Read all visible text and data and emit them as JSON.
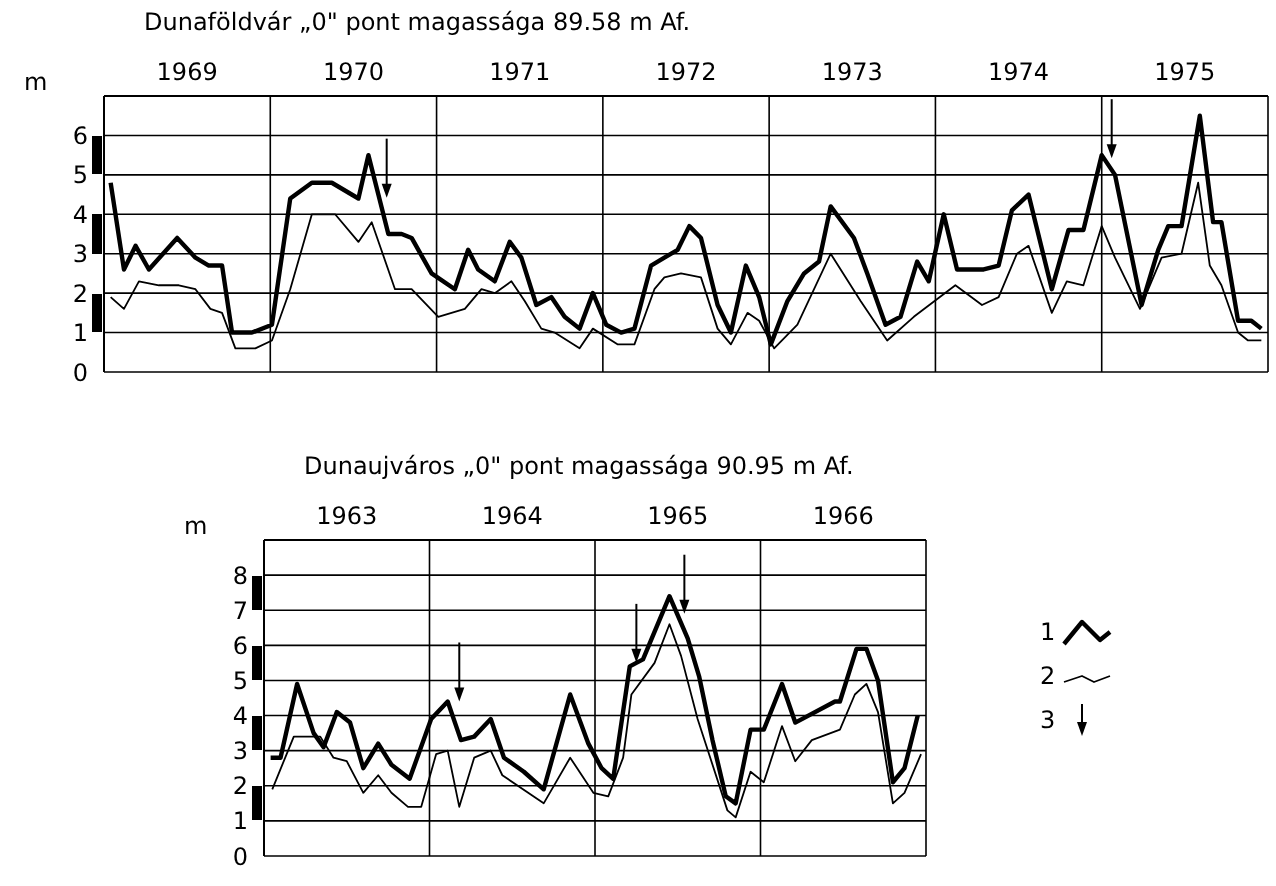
{
  "chart_data": [
    {
      "type": "line",
      "title": "Dunaföldvár „0\" pont magassága 89.58 m Af.",
      "ylabel": "m",
      "xlim": [
        1969,
        1976
      ],
      "ylim": [
        0,
        7
      ],
      "xticks": [
        {
          "value": 1969,
          "label": null
        },
        {
          "value": 1969.5,
          "label": "1969"
        },
        {
          "value": 1970,
          "label": null
        },
        {
          "value": 1970.5,
          "label": "1970"
        },
        {
          "value": 1971,
          "label": null
        },
        {
          "value": 1971.5,
          "label": "1971"
        },
        {
          "value": 1972,
          "label": null
        },
        {
          "value": 1972.5,
          "label": "1972"
        },
        {
          "value": 1973,
          "label": null
        },
        {
          "value": 1973.5,
          "label": "1973"
        },
        {
          "value": 1974,
          "label": null
        },
        {
          "value": 1974.5,
          "label": "1974"
        },
        {
          "value": 1975,
          "label": null
        },
        {
          "value": 1975.5,
          "label": "1975"
        },
        {
          "value": 1976,
          "label": null
        }
      ],
      "yticks": [
        0,
        1,
        2,
        3,
        4,
        5,
        6
      ],
      "grid": true,
      "legend": false,
      "series": [
        {
          "color": "#000000",
          "x": [
            1969.04,
            1969.12,
            1969.19,
            1969.27,
            1969.44,
            1969.55,
            1969.63,
            1969.71,
            1969.77,
            1969.89,
            1970.01,
            1970.12,
            1970.25,
            1970.37,
            1970.53,
            1970.59,
            1970.71,
            1970.79,
            1970.85,
            1970.97,
            1971.11,
            1971.19,
            1971.25,
            1971.35,
            1971.44,
            1971.51,
            1971.6,
            1971.69,
            1971.77,
            1971.86,
            1971.94,
            1972.02,
            1972.11,
            1972.19,
            1972.29,
            1972.37,
            1972.45,
            1972.52,
            1972.59,
            1972.69,
            1972.77,
            1972.86,
            1972.94,
            1973.01,
            1973.11,
            1973.21,
            1973.3,
            1973.37,
            1973.51,
            1973.59,
            1973.7,
            1973.79,
            1973.89,
            1973.96,
            1974.05,
            1974.13,
            1974.29,
            1974.38,
            1974.46,
            1974.56,
            1974.7,
            1974.8,
            1974.89,
            1975.0,
            1975.08,
            1975.24,
            1975.34,
            1975.4,
            1975.48,
            1975.59,
            1975.67,
            1975.72,
            1975.82,
            1975.9,
            1975.96
          ],
          "values": [
            4.8,
            2.6,
            3.2,
            2.6,
            3.4,
            2.9,
            2.7,
            2.7,
            1.0,
            1.0,
            1.2,
            4.4,
            4.8,
            4.8,
            4.4,
            5.5,
            3.5,
            3.5,
            3.4,
            2.5,
            2.1,
            3.1,
            2.6,
            2.3,
            3.3,
            2.9,
            1.7,
            1.9,
            1.4,
            1.1,
            2.0,
            1.2,
            1.0,
            1.1,
            2.7,
            2.9,
            3.1,
            3.7,
            3.4,
            1.7,
            1.0,
            2.7,
            1.9,
            0.7,
            1.8,
            2.5,
            2.8,
            4.2,
            3.4,
            2.5,
            1.2,
            1.4,
            2.8,
            2.3,
            4.0,
            2.6,
            2.6,
            2.7,
            4.1,
            4.5,
            2.1,
            3.6,
            3.6,
            5.5,
            5.0,
            1.7,
            3.1,
            3.7,
            3.7,
            6.5,
            3.8,
            3.8,
            1.3,
            1.3,
            1.1
          ]
        },
        {
          "color": "#000000",
          "x": [
            1969.04,
            1969.12,
            1969.21,
            1969.33,
            1969.45,
            1969.55,
            1969.64,
            1969.71,
            1969.79,
            1969.91,
            1970.01,
            1970.12,
            1970.25,
            1970.39,
            1970.53,
            1970.61,
            1970.75,
            1970.85,
            1971.01,
            1971.17,
            1971.27,
            1971.35,
            1971.45,
            1971.53,
            1971.63,
            1971.71,
            1971.86,
            1971.94,
            1972.09,
            1972.19,
            1972.31,
            1972.37,
            1972.47,
            1972.59,
            1972.69,
            1972.77,
            1972.87,
            1972.94,
            1973.03,
            1973.17,
            1973.37,
            1973.55,
            1973.71,
            1973.87,
            1974.12,
            1974.28,
            1974.38,
            1974.49,
            1974.56,
            1974.7,
            1974.79,
            1974.89,
            1975.0,
            1975.08,
            1975.23,
            1975.36,
            1975.48,
            1975.58,
            1975.65,
            1975.72,
            1975.82,
            1975.88,
            1975.96
          ],
          "values": [
            1.9,
            1.6,
            2.3,
            2.2,
            2.2,
            2.1,
            1.6,
            1.5,
            0.6,
            0.6,
            0.8,
            2.1,
            4.0,
            4.0,
            3.3,
            3.8,
            2.1,
            2.1,
            1.4,
            1.6,
            2.1,
            2.0,
            2.3,
            1.8,
            1.1,
            1.0,
            0.6,
            1.1,
            0.7,
            0.7,
            2.1,
            2.4,
            2.5,
            2.4,
            1.1,
            0.7,
            1.5,
            1.3,
            0.6,
            1.2,
            3.0,
            1.8,
            0.8,
            1.4,
            2.2,
            1.7,
            1.9,
            3.0,
            3.2,
            1.5,
            2.3,
            2.2,
            3.7,
            2.9,
            1.6,
            2.9,
            3.0,
            4.8,
            2.7,
            2.2,
            1.0,
            0.8,
            0.8
          ]
        },
        {
          "type": "scatter",
          "color": "#000000",
          "x": [
            1970.7,
            1975.06
          ],
          "values": [
            4.6,
            5.6
          ]
        }
      ]
    },
    {
      "type": "line",
      "title": "Dunaujváros „0\" pont magassága 90.95 m Af.",
      "ylabel": "m",
      "xlim": [
        1963,
        1967
      ],
      "ylim": [
        0,
        9
      ],
      "xticks": [
        {
          "value": 1963,
          "label": null
        },
        {
          "value": 1963.5,
          "label": "1963"
        },
        {
          "value": 1964,
          "label": null
        },
        {
          "value": 1964.5,
          "label": "1964"
        },
        {
          "value": 1965,
          "label": null
        },
        {
          "value": 1965.5,
          "label": "1965"
        },
        {
          "value": 1966,
          "label": null
        },
        {
          "value": 1966.5,
          "label": "1966"
        },
        {
          "value": 1967,
          "label": null
        }
      ],
      "yticks": [
        0,
        1,
        2,
        3,
        4,
        5,
        6,
        7,
        8
      ],
      "grid": true,
      "legend": "right",
      "series": [
        {
          "name": "1",
          "color": "#000000",
          "x": [
            1963.04,
            1963.1,
            1963.2,
            1963.3,
            1963.36,
            1963.44,
            1963.52,
            1963.6,
            1963.69,
            1963.77,
            1963.88,
            1964.01,
            1964.11,
            1964.19,
            1964.27,
            1964.37,
            1964.45,
            1964.57,
            1964.69,
            1964.85,
            1964.96,
            1965.04,
            1965.11,
            1965.21,
            1965.29,
            1965.45,
            1965.56,
            1965.63,
            1965.71,
            1965.79,
            1965.85,
            1965.94,
            1966.02,
            1966.13,
            1966.21,
            1966.45,
            1966.48,
            1966.58,
            1966.64,
            1966.71,
            1966.8,
            1966.87,
            1966.95
          ],
          "values": [
            2.8,
            2.8,
            4.9,
            3.5,
            3.1,
            4.1,
            3.8,
            2.5,
            3.2,
            2.6,
            2.2,
            3.9,
            4.4,
            3.3,
            3.4,
            3.9,
            2.8,
            2.4,
            1.9,
            4.6,
            3.2,
            2.5,
            2.2,
            5.4,
            5.6,
            7.4,
            6.2,
            5.1,
            3.3,
            1.7,
            1.5,
            3.6,
            3.6,
            4.9,
            3.8,
            4.4,
            4.4,
            5.9,
            5.9,
            5.0,
            2.1,
            2.5,
            4.0
          ]
        },
        {
          "name": "2",
          "color": "#000000",
          "x": [
            1963.05,
            1963.18,
            1963.34,
            1963.42,
            1963.5,
            1963.6,
            1963.69,
            1963.77,
            1963.87,
            1963.95,
            1964.04,
            1964.11,
            1964.18,
            1964.27,
            1964.37,
            1964.44,
            1964.69,
            1964.85,
            1964.99,
            1965.08,
            1965.17,
            1965.22,
            1965.36,
            1965.45,
            1965.52,
            1965.62,
            1965.8,
            1965.85,
            1965.94,
            1966.02,
            1966.13,
            1966.21,
            1966.31,
            1966.48,
            1966.57,
            1966.64,
            1966.71,
            1966.8,
            1966.87,
            1966.97
          ],
          "values": [
            1.9,
            3.4,
            3.4,
            2.8,
            2.7,
            1.8,
            2.3,
            1.8,
            1.4,
            1.4,
            2.9,
            3.0,
            1.4,
            2.8,
            3.0,
            2.3,
            1.5,
            2.8,
            1.8,
            1.7,
            2.8,
            4.6,
            5.5,
            6.6,
            5.7,
            3.9,
            1.3,
            1.1,
            2.4,
            2.1,
            3.7,
            2.7,
            3.3,
            3.6,
            4.6,
            4.9,
            4.1,
            1.5,
            1.8,
            2.9
          ]
        },
        {
          "name": "3",
          "type": "scatter",
          "color": "#000000",
          "x": [
            1964.18,
            1965.25,
            1965.54
          ],
          "values": [
            4.6,
            5.7,
            7.1
          ]
        }
      ]
    }
  ]
}
